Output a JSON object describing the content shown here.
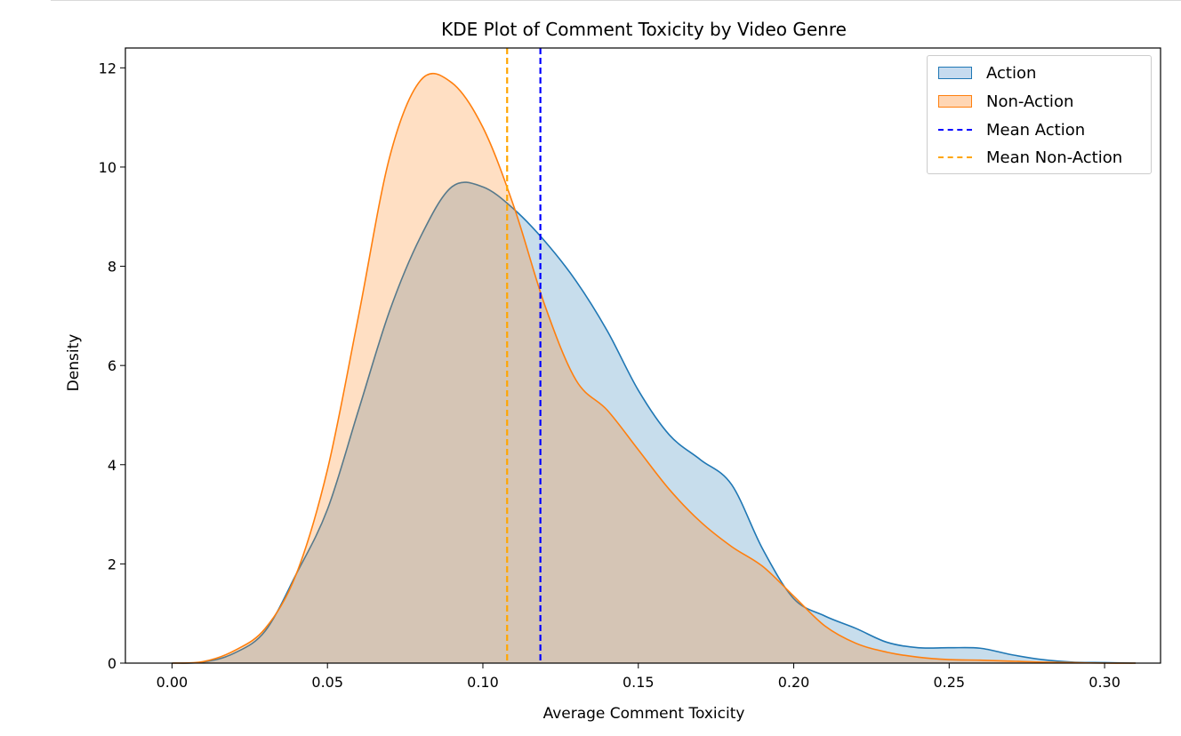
{
  "chart_data": {
    "type": "area",
    "title": "KDE Plot of Comment Toxicity by Video Genre",
    "xlabel": "Average Comment Toxicity",
    "ylabel": "Density",
    "xlim": [
      -0.015,
      0.318
    ],
    "ylim": [
      0,
      12.4
    ],
    "xticks": [
      0.0,
      0.05,
      0.1,
      0.15,
      0.2,
      0.25,
      0.3
    ],
    "xtick_labels": [
      "0.00",
      "0.05",
      "0.10",
      "0.15",
      "0.20",
      "0.25",
      "0.30"
    ],
    "yticks": [
      0,
      2,
      4,
      6,
      8,
      10,
      12
    ],
    "ytick_labels": [
      "0",
      "2",
      "4",
      "6",
      "8",
      "10",
      "12"
    ],
    "series": [
      {
        "name": "Action",
        "line_color": "#1f77b4",
        "fill_color": "#1f77b4",
        "fill_opacity": 0.25,
        "x": [
          0.0,
          0.01,
          0.02,
          0.03,
          0.04,
          0.05,
          0.06,
          0.07,
          0.08,
          0.09,
          0.1,
          0.11,
          0.12,
          0.13,
          0.14,
          0.15,
          0.16,
          0.17,
          0.18,
          0.19,
          0.2,
          0.21,
          0.22,
          0.23,
          0.24,
          0.25,
          0.26,
          0.27,
          0.28,
          0.29,
          0.3,
          0.31
        ],
        "values": [
          0.0,
          0.02,
          0.2,
          0.65,
          1.8,
          3.1,
          5.1,
          7.1,
          8.6,
          9.6,
          9.6,
          9.15,
          8.5,
          7.7,
          6.7,
          5.5,
          4.6,
          4.1,
          3.6,
          2.3,
          1.3,
          0.95,
          0.7,
          0.42,
          0.31,
          0.31,
          0.3,
          0.17,
          0.07,
          0.02,
          0.01,
          0.0
        ]
      },
      {
        "name": "Non-Action",
        "line_color": "#ff7f0e",
        "fill_color": "#ff7f0e",
        "fill_opacity": 0.25,
        "x": [
          0.0,
          0.01,
          0.02,
          0.03,
          0.04,
          0.05,
          0.06,
          0.07,
          0.08,
          0.09,
          0.1,
          0.11,
          0.12,
          0.13,
          0.14,
          0.15,
          0.16,
          0.17,
          0.18,
          0.19,
          0.2,
          0.21,
          0.22,
          0.23,
          0.24,
          0.25,
          0.26,
          0.27,
          0.28,
          0.29,
          0.3,
          0.31
        ],
        "values": [
          0.0,
          0.03,
          0.25,
          0.7,
          1.8,
          3.9,
          7.0,
          10.2,
          11.75,
          11.7,
          10.8,
          9.2,
          7.2,
          5.7,
          5.1,
          4.3,
          3.5,
          2.85,
          2.35,
          1.95,
          1.35,
          0.75,
          0.4,
          0.22,
          0.12,
          0.07,
          0.06,
          0.04,
          0.02,
          0.01,
          0.0,
          0.0
        ]
      }
    ],
    "mean_lines": [
      {
        "name": "Mean Action",
        "x": 0.1185,
        "color": "#0000ff"
      },
      {
        "name": "Mean Non-Action",
        "x": 0.1078,
        "color": "#ffa500"
      }
    ],
    "legend": {
      "placement": "top-right",
      "entries": [
        {
          "label": "Action",
          "kind": "patch",
          "face": "#c6dbef",
          "edge": "#1f77b4"
        },
        {
          "label": "Non-Action",
          "kind": "patch",
          "face": "#ffd6b4",
          "edge": "#ff7f0e"
        },
        {
          "label": "Mean Action",
          "kind": "dashed-line",
          "edge": "#0000ff"
        },
        {
          "label": "Mean Non-Action",
          "kind": "dashed-line",
          "edge": "#ffa500"
        }
      ]
    }
  }
}
